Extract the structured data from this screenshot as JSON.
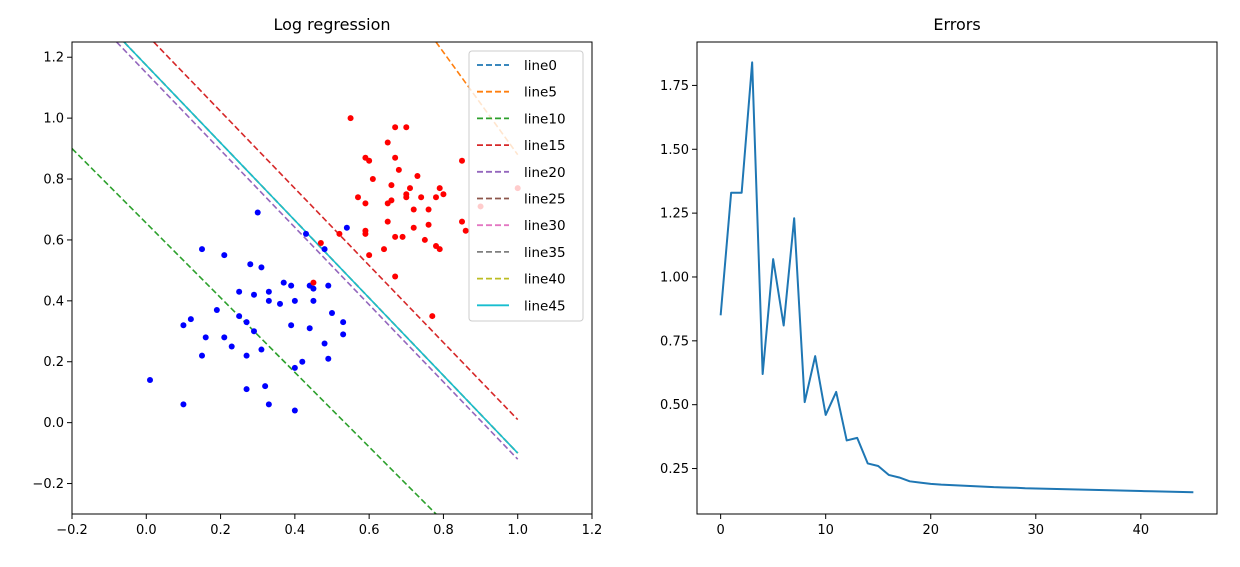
{
  "chart_data": [
    {
      "type": "scatter",
      "title": "Log regression",
      "xlabel": "",
      "ylabel": "",
      "xlim": [
        -0.2,
        1.2
      ],
      "ylim": [
        -0.3,
        1.25
      ],
      "xticks": [
        -0.2,
        0.0,
        0.2,
        0.4,
        0.6,
        0.8,
        1.0,
        1.2
      ],
      "xtick_labels": [
        "−0.2",
        "0.0",
        "0.2",
        "0.4",
        "0.6",
        "0.8",
        "1.0",
        "1.2"
      ],
      "yticks": [
        -0.2,
        0.0,
        0.2,
        0.4,
        0.6,
        0.8,
        1.0,
        1.2
      ],
      "ytick_labels": [
        "−0.2",
        "0.0",
        "0.2",
        "0.4",
        "0.6",
        "0.8",
        "1.0",
        "1.2"
      ],
      "grid": false,
      "legend_position": "upper-right",
      "point_series": [
        {
          "color": "#0000ff",
          "points": [
            [
              0.01,
              0.14
            ],
            [
              0.1,
              0.06
            ],
            [
              0.1,
              0.32
            ],
            [
              0.12,
              0.34
            ],
            [
              0.15,
              0.57
            ],
            [
              0.15,
              0.22
            ],
            [
              0.16,
              0.28
            ],
            [
              0.19,
              0.37
            ],
            [
              0.21,
              0.55
            ],
            [
              0.21,
              0.28
            ],
            [
              0.23,
              0.25
            ],
            [
              0.25,
              0.43
            ],
            [
              0.25,
              0.35
            ],
            [
              0.27,
              0.33
            ],
            [
              0.27,
              0.22
            ],
            [
              0.27,
              0.11
            ],
            [
              0.28,
              0.52
            ],
            [
              0.29,
              0.42
            ],
            [
              0.29,
              0.3
            ],
            [
              0.3,
              0.69
            ],
            [
              0.31,
              0.51
            ],
            [
              0.31,
              0.24
            ],
            [
              0.32,
              0.12
            ],
            [
              0.33,
              0.4
            ],
            [
              0.33,
              0.43
            ],
            [
              0.33,
              0.06
            ],
            [
              0.36,
              0.39
            ],
            [
              0.37,
              0.46
            ],
            [
              0.39,
              0.45
            ],
            [
              0.39,
              0.32
            ],
            [
              0.4,
              0.4
            ],
            [
              0.4,
              0.18
            ],
            [
              0.4,
              0.04
            ],
            [
              0.42,
              0.2
            ],
            [
              0.43,
              0.62
            ],
            [
              0.44,
              0.31
            ],
            [
              0.44,
              0.45
            ],
            [
              0.45,
              0.44
            ],
            [
              0.45,
              0.4
            ],
            [
              0.48,
              0.57
            ],
            [
              0.48,
              0.26
            ],
            [
              0.49,
              0.45
            ],
            [
              0.49,
              0.21
            ],
            [
              0.5,
              0.36
            ],
            [
              0.53,
              0.33
            ],
            [
              0.53,
              0.29
            ],
            [
              0.54,
              0.64
            ]
          ]
        },
        {
          "color": "#ff0000",
          "points": [
            [
              0.45,
              0.46
            ],
            [
              0.47,
              0.59
            ],
            [
              0.52,
              0.62
            ],
            [
              0.55,
              1.0
            ],
            [
              0.57,
              0.74
            ],
            [
              0.59,
              0.87
            ],
            [
              0.59,
              0.72
            ],
            [
              0.59,
              0.63
            ],
            [
              0.59,
              0.62
            ],
            [
              0.6,
              0.86
            ],
            [
              0.6,
              0.55
            ],
            [
              0.61,
              0.8
            ],
            [
              0.64,
              0.57
            ],
            [
              0.65,
              0.92
            ],
            [
              0.65,
              0.72
            ],
            [
              0.65,
              0.66
            ],
            [
              0.66,
              0.73
            ],
            [
              0.66,
              0.78
            ],
            [
              0.67,
              0.87
            ],
            [
              0.67,
              0.97
            ],
            [
              0.67,
              0.61
            ],
            [
              0.67,
              0.48
            ],
            [
              0.68,
              0.83
            ],
            [
              0.69,
              0.61
            ],
            [
              0.7,
              0.97
            ],
            [
              0.7,
              0.75
            ],
            [
              0.7,
              0.74
            ],
            [
              0.71,
              0.77
            ],
            [
              0.72,
              0.7
            ],
            [
              0.72,
              0.64
            ],
            [
              0.73,
              0.81
            ],
            [
              0.74,
              0.74
            ],
            [
              0.75,
              0.6
            ],
            [
              0.76,
              0.7
            ],
            [
              0.76,
              0.65
            ],
            [
              0.77,
              0.35
            ],
            [
              0.78,
              0.58
            ],
            [
              0.78,
              0.74
            ],
            [
              0.79,
              0.57
            ],
            [
              0.79,
              0.77
            ],
            [
              0.8,
              0.75
            ],
            [
              0.85,
              0.66
            ],
            [
              0.85,
              0.86
            ],
            [
              0.86,
              0.63
            ],
            [
              0.9,
              0.71
            ],
            [
              1.0,
              0.77
            ]
          ]
        }
      ],
      "lines": [
        {
          "name": "line0",
          "color": "#1f77b4",
          "style": "dashed",
          "x": [
            -0.2,
            1.0
          ],
          "y": [
            null,
            null
          ]
        },
        {
          "name": "line5",
          "color": "#ff7f0e",
          "style": "dashed",
          "x": [
            0.78,
            1.0
          ],
          "y": [
            1.25,
            0.88
          ]
        },
        {
          "name": "line10",
          "color": "#2ca02c",
          "style": "dashed",
          "x": [
            -0.2,
            0.78
          ],
          "y": [
            0.9,
            -0.3
          ]
        },
        {
          "name": "line15",
          "color": "#d62728",
          "style": "dashed",
          "x": [
            0.02,
            1.0
          ],
          "y": [
            1.25,
            0.01
          ]
        },
        {
          "name": "line20",
          "color": "#9467bd",
          "style": "dashed",
          "x": [
            -0.08,
            1.0
          ],
          "y": [
            1.25,
            -0.12
          ]
        },
        {
          "name": "line25",
          "color": "#8c564b",
          "style": "dashed",
          "x": [
            -0.06,
            1.0
          ],
          "y": [
            1.25,
            -0.1
          ]
        },
        {
          "name": "line30",
          "color": "#e377c2",
          "style": "dashed",
          "x": [
            -0.06,
            1.0
          ],
          "y": [
            1.25,
            -0.1
          ]
        },
        {
          "name": "line35",
          "color": "#7f7f7f",
          "style": "dashed",
          "x": [
            -0.06,
            1.0
          ],
          "y": [
            1.25,
            -0.1
          ]
        },
        {
          "name": "line40",
          "color": "#bcbd22",
          "style": "dashed",
          "x": [
            -0.06,
            1.0
          ],
          "y": [
            1.25,
            -0.1
          ]
        },
        {
          "name": "line45",
          "color": "#17becf",
          "style": "solid",
          "x": [
            -0.06,
            1.0
          ],
          "y": [
            1.25,
            -0.1
          ]
        }
      ]
    },
    {
      "type": "line",
      "title": "Errors",
      "xlabel": "",
      "ylabel": "",
      "xlim": [
        -2.25,
        47.25
      ],
      "ylim": [
        0.072,
        1.92
      ],
      "xticks": [
        0,
        10,
        20,
        30,
        40
      ],
      "xtick_labels": [
        "0",
        "10",
        "20",
        "30",
        "40"
      ],
      "yticks": [
        0.25,
        0.5,
        0.75,
        1.0,
        1.25,
        1.5,
        1.75
      ],
      "ytick_labels": [
        "0.25",
        "0.50",
        "0.75",
        "1.00",
        "1.25",
        "1.50",
        "1.75"
      ],
      "grid": false,
      "series": [
        {
          "color": "#1f77b4",
          "x": [
            0,
            1,
            2,
            3,
            4,
            5,
            6,
            7,
            8,
            9,
            10,
            11,
            12,
            13,
            14,
            15,
            16,
            17,
            18,
            19,
            20,
            21,
            22,
            23,
            24,
            25,
            26,
            27,
            28,
            29,
            30,
            31,
            32,
            33,
            34,
            35,
            36,
            37,
            38,
            39,
            40,
            41,
            42,
            43,
            44,
            45
          ],
          "values": [
            0.85,
            1.33,
            1.33,
            1.84,
            0.62,
            1.07,
            0.81,
            1.23,
            0.51,
            0.69,
            0.46,
            0.55,
            0.36,
            0.37,
            0.27,
            0.26,
            0.225,
            0.215,
            0.2,
            0.195,
            0.19,
            0.187,
            0.185,
            0.183,
            0.181,
            0.179,
            0.177,
            0.176,
            0.175,
            0.173,
            0.172,
            0.171,
            0.17,
            0.169,
            0.168,
            0.167,
            0.166,
            0.165,
            0.164,
            0.163,
            0.162,
            0.161,
            0.16,
            0.159,
            0.158,
            0.157
          ]
        }
      ]
    }
  ]
}
